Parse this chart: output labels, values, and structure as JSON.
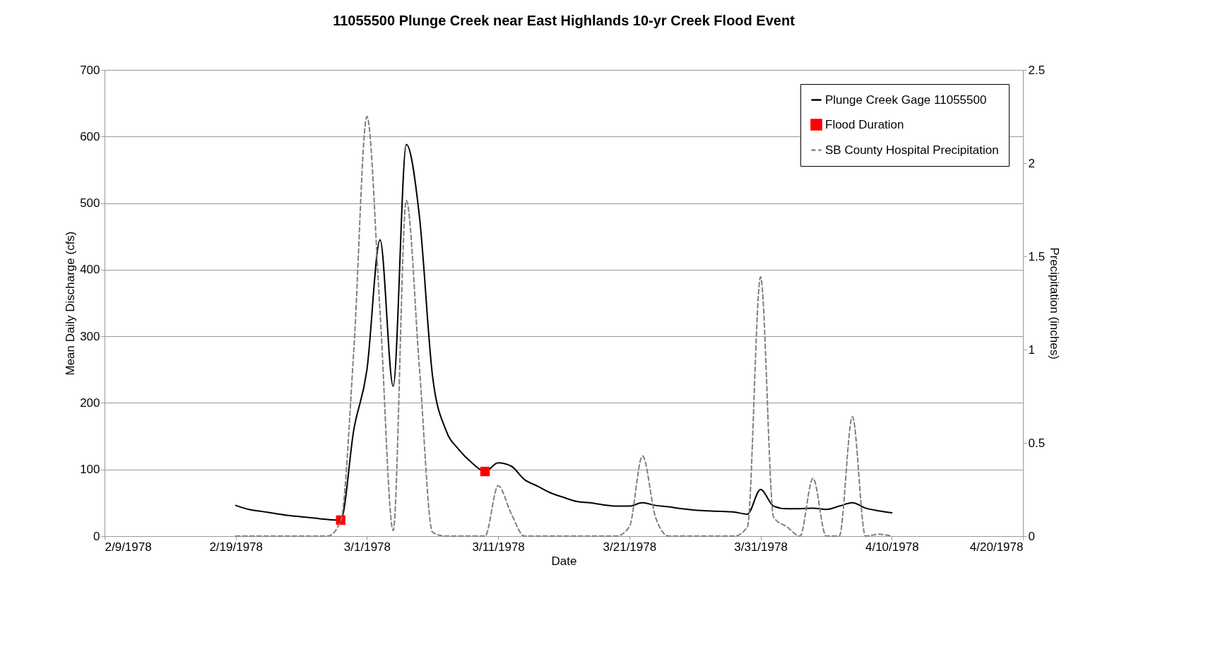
{
  "chart_data": {
    "type": "line",
    "title": "11055500 Plunge Creek near East Highlands 10-yr Creek Flood Event",
    "xlabel": "Date",
    "ylabel": "Mean Daily Discharge (cfs)",
    "y2label": "Precipitation (inches)",
    "x": [
      "1978-02-19",
      "1978-02-20",
      "1978-02-21",
      "1978-02-22",
      "1978-02-23",
      "1978-02-24",
      "1978-02-25",
      "1978-02-26",
      "1978-02-27",
      "1978-02-28",
      "1978-03-01",
      "1978-03-02",
      "1978-03-03",
      "1978-03-04",
      "1978-03-05",
      "1978-03-06",
      "1978-03-07",
      "1978-03-08",
      "1978-03-09",
      "1978-03-10",
      "1978-03-11",
      "1978-03-12",
      "1978-03-13",
      "1978-03-14",
      "1978-03-15",
      "1978-03-16",
      "1978-03-17",
      "1978-03-18",
      "1978-03-19",
      "1978-03-20",
      "1978-03-21",
      "1978-03-22",
      "1978-03-23",
      "1978-03-24",
      "1978-03-25",
      "1978-03-26",
      "1978-03-27",
      "1978-03-28",
      "1978-03-29",
      "1978-03-30",
      "1978-03-31",
      "1978-04-01",
      "1978-04-02",
      "1978-04-03",
      "1978-04-04",
      "1978-04-05",
      "1978-04-06",
      "1978-04-07",
      "1978-04-08",
      "1978-04-09",
      "1978-04-10"
    ],
    "xlim": [
      "1978-02-09",
      "1978-04-20"
    ],
    "xticks": [
      {
        "value": "1978-02-09",
        "label": "2/9/1978"
      },
      {
        "value": "1978-02-19",
        "label": "2/19/1978"
      },
      {
        "value": "1978-03-01",
        "label": "3/1/1978"
      },
      {
        "value": "1978-03-11",
        "label": "3/11/1978"
      },
      {
        "value": "1978-03-21",
        "label": "3/21/1978"
      },
      {
        "value": "1978-03-31",
        "label": "3/31/1978"
      },
      {
        "value": "1978-04-10",
        "label": "4/10/1978"
      },
      {
        "value": "1978-04-20",
        "label": "4/20/1978"
      }
    ],
    "ylim": [
      0,
      700
    ],
    "yticks": [
      0,
      100,
      200,
      300,
      400,
      500,
      600,
      700
    ],
    "y2lim": [
      0,
      2.5
    ],
    "y2ticks": [
      0,
      0.5,
      1,
      1.5,
      2,
      2.5
    ],
    "grid": "y",
    "legend": "top right",
    "series": [
      {
        "name": "Plunge Creek Gage 11055500",
        "color": "#000000",
        "line_style": "solid",
        "values": [
          46,
          40,
          37,
          34,
          31,
          29,
          27,
          25,
          24,
          160,
          250,
          445,
          225,
          588,
          480,
          240,
          160,
          130,
          110,
          97,
          110,
          105,
          85,
          75,
          65,
          58,
          52,
          50,
          47,
          45,
          45,
          50,
          46,
          44,
          41,
          39,
          38,
          37,
          36,
          33,
          70,
          45,
          41,
          41,
          42,
          40,
          45,
          50,
          42,
          38,
          35
        ]
      },
      {
        "name": "Flood Duration",
        "type": "scatter",
        "marker": "square",
        "color": "#ff0000",
        "x": [
          "1978-02-27",
          "1978-03-10"
        ],
        "values": [
          24,
          97
        ]
      },
      {
        "name": "SB County Hospital Precipitation",
        "color": "#808080",
        "axis": "y2",
        "line_style": "dashed",
        "values": [
          0,
          0,
          0,
          0,
          0,
          0,
          0,
          0,
          0.08,
          1.0,
          2.25,
          1.2,
          0.03,
          1.8,
          0.9,
          0.02,
          0,
          0,
          0,
          0,
          0.27,
          0.12,
          0,
          0,
          0,
          0,
          0,
          0,
          0,
          0,
          0.05,
          0.43,
          0.1,
          0,
          0,
          0,
          0,
          0,
          0,
          0.05,
          1.39,
          0.1,
          0.05,
          0,
          0.31,
          0,
          0,
          0.64,
          0,
          0.01,
          0
        ]
      }
    ]
  }
}
